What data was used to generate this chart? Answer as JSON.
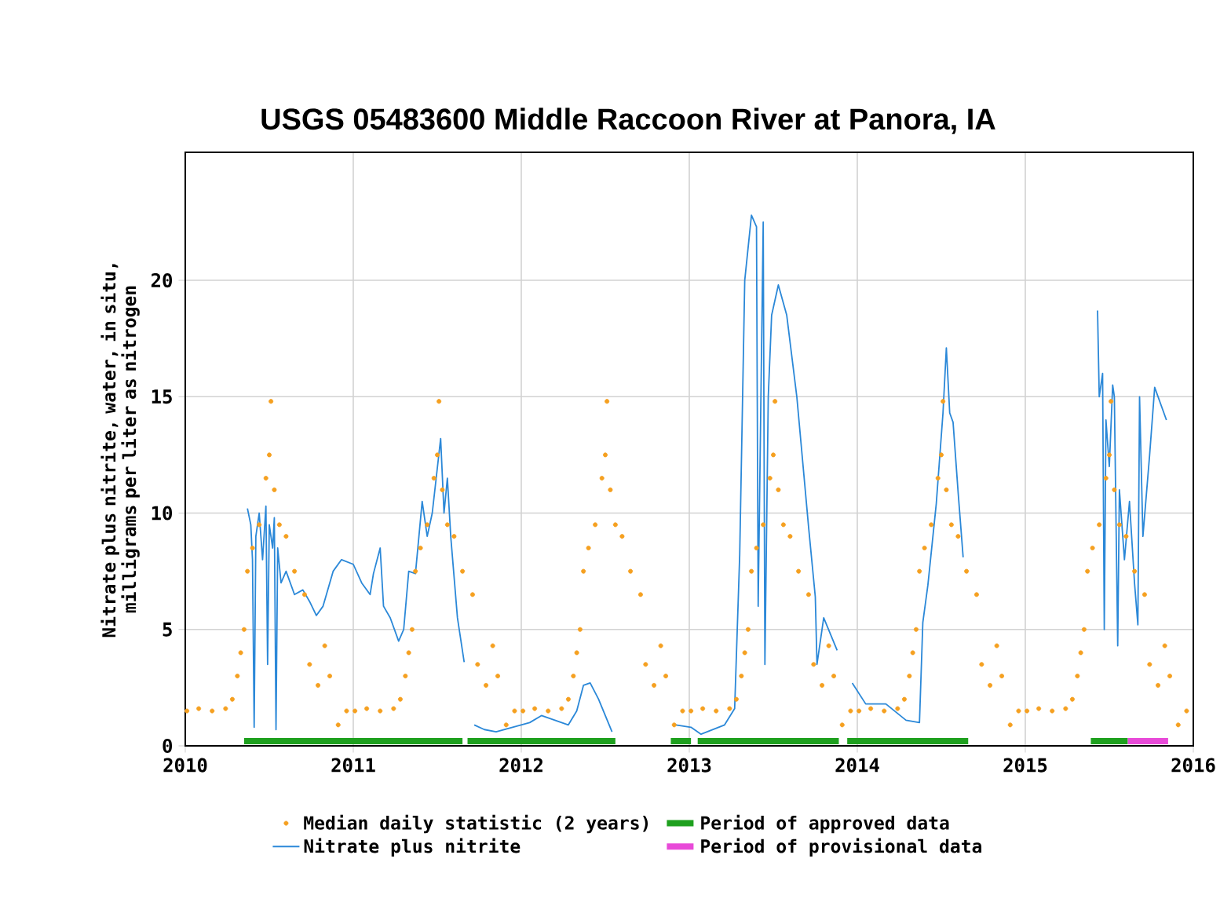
{
  "chart_data": {
    "type": "line",
    "title": "USGS 05483600 Middle Raccoon River at Panora, IA",
    "ylabel": "Nitrate plus nitrite, water, in situ, milligrams per liter as nitrogen",
    "xlim": [
      2010,
      2016
    ],
    "xticks": [
      2010,
      2011,
      2012,
      2013,
      2014,
      2015,
      2016
    ],
    "ylim": [
      0,
      25.5
    ],
    "yticks": [
      0,
      5,
      10,
      15,
      20
    ],
    "grid": true,
    "legend": "bottom",
    "series": [
      {
        "name": "Median daily statistic (2 years)",
        "type": "scatter",
        "marker": "circle",
        "color": "#f5a020",
        "x": [
          2010.01,
          2010.08,
          2010.16,
          2010.24,
          2010.28,
          2010.31,
          2010.33,
          2010.35,
          2010.37,
          2010.4,
          2010.44,
          2010.48,
          2010.5,
          2010.51,
          2010.53,
          2010.56,
          2010.6,
          2010.65,
          2010.71,
          2010.74,
          2010.79,
          2010.83,
          2010.86,
          2010.91,
          2010.96,
          2011.01,
          2011.08,
          2011.16,
          2011.24,
          2011.28,
          2011.31,
          2011.33,
          2011.35,
          2011.37,
          2011.4,
          2011.44,
          2011.48,
          2011.5,
          2011.51,
          2011.53,
          2011.56,
          2011.6,
          2011.65,
          2011.71,
          2011.74,
          2011.79,
          2011.83,
          2011.86,
          2011.91,
          2011.96,
          2012.01,
          2012.08,
          2012.16,
          2012.24,
          2012.28,
          2012.31,
          2012.33,
          2012.35,
          2012.37,
          2012.4,
          2012.44,
          2012.48,
          2012.5,
          2012.51,
          2012.53,
          2012.56,
          2012.6,
          2012.65,
          2012.71,
          2012.74,
          2012.79,
          2012.83,
          2012.86,
          2012.91,
          2012.96,
          2013.01,
          2013.08,
          2013.16,
          2013.24,
          2013.28,
          2013.31,
          2013.33,
          2013.35,
          2013.37,
          2013.4,
          2013.44,
          2013.48,
          2013.5,
          2013.51,
          2013.53,
          2013.56,
          2013.6,
          2013.65,
          2013.71,
          2013.74,
          2013.79,
          2013.83,
          2013.86,
          2013.91,
          2013.96,
          2014.01,
          2014.08,
          2014.16,
          2014.24,
          2014.28,
          2014.31,
          2014.33,
          2014.35,
          2014.37,
          2014.4,
          2014.44,
          2014.48,
          2014.5,
          2014.51,
          2014.53,
          2014.56,
          2014.6,
          2014.65,
          2014.71,
          2014.74,
          2014.79,
          2014.83,
          2014.86,
          2014.91,
          2014.96,
          2015.01,
          2015.08,
          2015.16,
          2015.24,
          2015.28,
          2015.31,
          2015.33,
          2015.35,
          2015.37,
          2015.4,
          2015.44,
          2015.48,
          2015.5,
          2015.51,
          2015.53,
          2015.56,
          2015.6,
          2015.65,
          2015.71,
          2015.74,
          2015.79,
          2015.83,
          2015.86,
          2015.91,
          2015.96
        ],
        "values": [
          1.5,
          1.6,
          1.5,
          1.6,
          2.0,
          3.0,
          4.0,
          5.0,
          7.5,
          8.5,
          9.5,
          11.5,
          12.5,
          14.8,
          11.0,
          9.5,
          9.0,
          7.5,
          6.5,
          3.5,
          2.6,
          4.3,
          3.0,
          0.9,
          1.5,
          1.5,
          1.6,
          1.5,
          1.6,
          2.0,
          3.0,
          4.0,
          5.0,
          7.5,
          8.5,
          9.5,
          11.5,
          12.5,
          14.8,
          11.0,
          9.5,
          9.0,
          7.5,
          6.5,
          3.5,
          2.6,
          4.3,
          3.0,
          0.9,
          1.5,
          1.5,
          1.6,
          1.5,
          1.6,
          2.0,
          3.0,
          4.0,
          5.0,
          7.5,
          8.5,
          9.5,
          11.5,
          12.5,
          14.8,
          11.0,
          9.5,
          9.0,
          7.5,
          6.5,
          3.5,
          2.6,
          4.3,
          3.0,
          0.9,
          1.5,
          1.5,
          1.6,
          1.5,
          1.6,
          2.0,
          3.0,
          4.0,
          5.0,
          7.5,
          8.5,
          9.5,
          11.5,
          12.5,
          14.8,
          11.0,
          9.5,
          9.0,
          7.5,
          6.5,
          3.5,
          2.6,
          4.3,
          3.0,
          0.9,
          1.5,
          1.5,
          1.6,
          1.5,
          1.6,
          2.0,
          3.0,
          4.0,
          5.0,
          7.5,
          8.5,
          9.5,
          11.5,
          12.5,
          14.8,
          11.0,
          9.5,
          9.0,
          7.5,
          6.5,
          3.5,
          2.6,
          4.3,
          3.0,
          0.9,
          1.5,
          1.5,
          1.6,
          1.5,
          1.6,
          2.0,
          3.0,
          4.0,
          5.0,
          7.5,
          8.5,
          9.5,
          11.5,
          12.5,
          14.8,
          11.0,
          9.5,
          9.0,
          7.5,
          6.5,
          3.5,
          2.6,
          4.3,
          3.0,
          0.9,
          1.5
        ]
      },
      {
        "name": "Nitrate plus nitrite",
        "color": "#2b88d8",
        "x": [
          2010.37,
          2010.39,
          2010.4,
          2010.41,
          2010.42,
          2010.44,
          2010.46,
          2010.48,
          2010.49,
          2010.5,
          2010.52,
          2010.53,
          2010.54,
          2010.55,
          2010.57,
          2010.6,
          2010.65,
          2010.7,
          2010.74,
          2010.78,
          2010.82,
          2010.88,
          2010.93,
          2011.0,
          2011.05,
          2011.1,
          2011.12,
          2011.16,
          2011.18,
          2011.22,
          2011.27,
          2011.3,
          2011.33,
          2011.37,
          2011.41,
          2011.44,
          2011.47,
          2011.52,
          2011.54,
          2011.56,
          2011.58,
          2011.62,
          2011.66,
          2011.69,
          2011.72,
          2011.78,
          2011.85,
          2011.95,
          2012.05,
          2012.12,
          2012.2,
          2012.28,
          2012.33,
          2012.37,
          2012.41,
          2012.46,
          2012.54,
          2012.7,
          2012.92,
          2013.01,
          2013.07,
          2013.21,
          2013.27,
          2013.3,
          2013.33,
          2013.37,
          2013.4,
          2013.41,
          2013.44,
          2013.45,
          2013.47,
          2013.49,
          2013.53,
          2013.58,
          2013.64,
          2013.71,
          2013.75,
          2013.76,
          2013.8,
          2013.88,
          2013.92,
          2013.97,
          2014.05,
          2014.17,
          2014.29,
          2014.37,
          2014.39,
          2014.42,
          2014.47,
          2014.51,
          2014.53,
          2014.55,
          2014.57,
          2014.6,
          2014.63,
          2014.9,
          2015.43,
          2015.44,
          2015.46,
          2015.47,
          2015.48,
          2015.5,
          2015.52,
          2015.53,
          2015.55,
          2015.56,
          2015.59,
          2015.62,
          2015.65,
          2015.67,
          2015.68,
          2015.7,
          2015.74,
          2015.77,
          2015.8,
          2015.84
        ],
        "values": [
          10.2,
          9.5,
          8.0,
          0.8,
          9.0,
          10.0,
          8.0,
          10.3,
          3.5,
          9.5,
          8.5,
          9.8,
          0.7,
          8.5,
          7.0,
          7.5,
          6.5,
          6.7,
          6.2,
          5.6,
          6.0,
          7.5,
          8.0,
          7.8,
          7.0,
          6.5,
          7.4,
          8.5,
          6.0,
          5.5,
          4.5,
          5.0,
          7.5,
          7.4,
          10.5,
          9.0,
          10.0,
          13.2,
          10.0,
          11.5,
          9.0,
          5.5,
          3.6,
          null,
          0.9,
          0.7,
          0.6,
          0.8,
          1.0,
          1.3,
          1.1,
          0.9,
          1.5,
          2.6,
          2.7,
          2.0,
          0.6,
          null,
          0.9,
          0.8,
          0.5,
          0.9,
          1.6,
          8.2,
          20.0,
          22.8,
          22.3,
          6.0,
          22.5,
          3.5,
          15.0,
          18.5,
          19.8,
          18.5,
          15.0,
          9.4,
          6.4,
          3.5,
          5.5,
          4.1,
          null,
          2.7,
          1.8,
          1.8,
          1.1,
          1.0,
          5.3,
          6.9,
          10.4,
          14.3,
          17.1,
          14.3,
          13.9,
          10.9,
          8.1,
          null,
          18.7,
          15.0,
          16.0,
          5.0,
          14.0,
          12.0,
          15.5,
          15.0,
          4.3,
          11.0,
          8.0,
          10.5,
          7.0,
          5.2,
          15.0,
          9.0,
          12.5,
          15.4,
          14.8,
          14.0
        ]
      },
      {
        "name": "Period of approved data",
        "color": "#1ea01e",
        "x": [
          2010.35,
          2011.65,
          2011.66,
          2011.68,
          2012.56,
          2012.7,
          2012.89,
          2013.01,
          2013.03,
          2013.05,
          2013.89,
          2013.915,
          2013.94,
          2014.66,
          2015.0,
          2015.39,
          2015.61
        ],
        "values": [
          0.2,
          0.2,
          null,
          0.2,
          0.2,
          null,
          0.2,
          0.2,
          null,
          0.2,
          0.2,
          null,
          0.2,
          0.2,
          null,
          0.2,
          0.2
        ]
      },
      {
        "name": "Period of provisional data",
        "color": "#e84ad8",
        "x": [
          2015.61,
          2015.85
        ],
        "values": [
          0.2,
          0.2
        ]
      }
    ]
  }
}
